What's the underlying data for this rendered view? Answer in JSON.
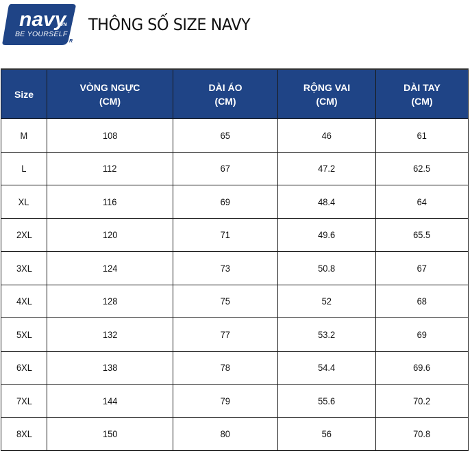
{
  "logo": {
    "brand": "navy",
    "suffix": ".VN",
    "tagline": "BE YOURSELF",
    "mark": "R",
    "color": "#1f4486"
  },
  "title": "THÔNG SỐ SIZE NAVY",
  "table": {
    "header_color": "#1f4486",
    "columns": [
      {
        "line1": "Size",
        "line2": ""
      },
      {
        "line1": "VÒNG NGỰC",
        "line2": "(CM)"
      },
      {
        "line1": "DÀI ÁO",
        "line2": "(CM)"
      },
      {
        "line1": "RỘNG VAI",
        "line2": "(CM)"
      },
      {
        "line1": "DÀI TAY",
        "line2": "(CM)"
      }
    ],
    "rows": [
      [
        "M",
        "108",
        "65",
        "46",
        "61"
      ],
      [
        "L",
        "112",
        "67",
        "47.2",
        "62.5"
      ],
      [
        "XL",
        "116",
        "69",
        "48.4",
        "64"
      ],
      [
        "2XL",
        "120",
        "71",
        "49.6",
        "65.5"
      ],
      [
        "3XL",
        "124",
        "73",
        "50.8",
        "67"
      ],
      [
        "4XL",
        "128",
        "75",
        "52",
        "68"
      ],
      [
        "5XL",
        "132",
        "77",
        "53.2",
        "69"
      ],
      [
        "6XL",
        "138",
        "78",
        "54.4",
        "69.6"
      ],
      [
        "7XL",
        "144",
        "79",
        "55.6",
        "70.2"
      ],
      [
        "8XL",
        "150",
        "80",
        "56",
        "70.8"
      ]
    ]
  }
}
